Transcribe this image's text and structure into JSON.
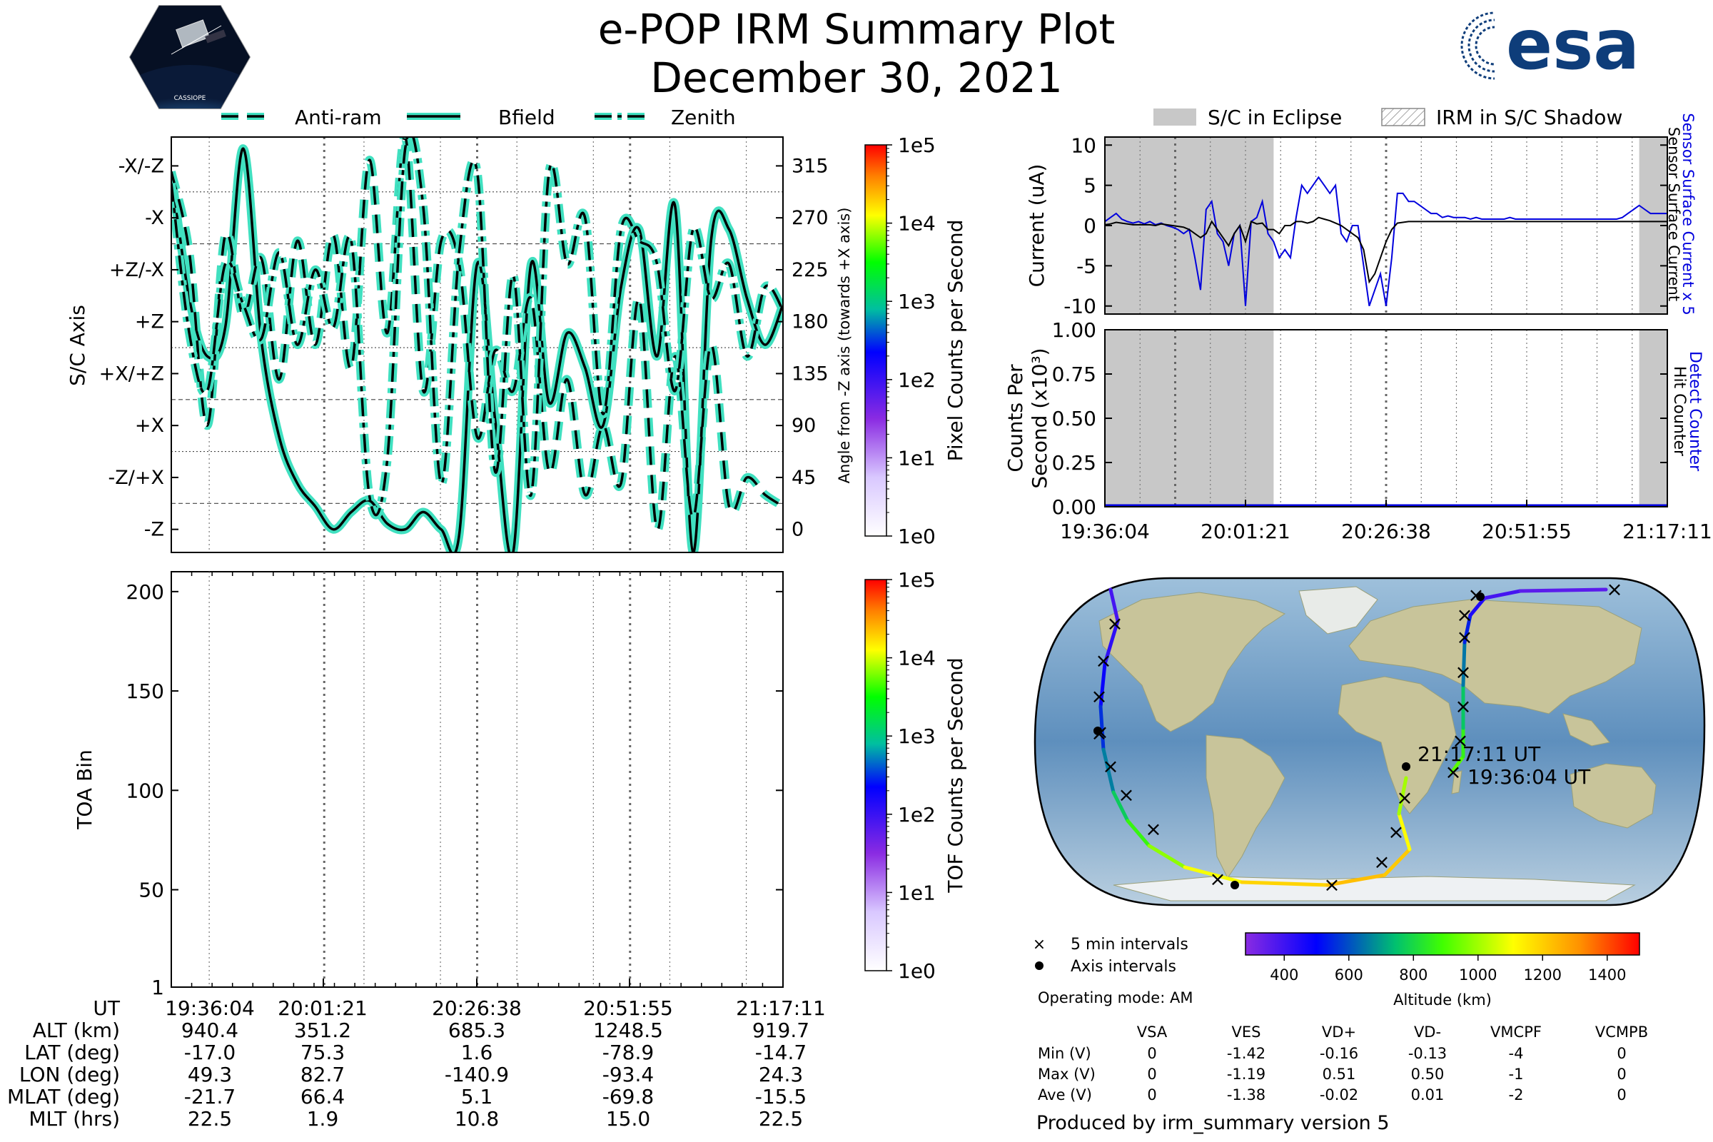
{
  "header": {
    "title": "e-POP IRM Summary Plot",
    "date": "December 30, 2021",
    "mission_badge_text": "CASSIOPE",
    "agency_logo_text": "esa"
  },
  "colors": {
    "line_fill": "#40e0c0",
    "eclipse_gray": "#c8c8c8",
    "blue": "#0000dd",
    "ocean": "#7aa6c8",
    "land": "#c9c59a"
  },
  "chart_data": [
    {
      "id": "sc-axis",
      "type": "line",
      "legend": [
        "Anti-ram",
        "Bfield",
        "Zenith"
      ],
      "ylabel_left": "S/C Axis",
      "ylabel_right": "Angle from -Z axis (towards +X axis)",
      "left_ticks": [
        "-X/-Z",
        "-X",
        "+Z/-X",
        "+Z",
        "+X/+Z",
        "+X",
        "-Z/+X",
        "-Z"
      ],
      "right_ticks": [
        315,
        270,
        225,
        180,
        135,
        90,
        45,
        0
      ],
      "ylim": [
        -20,
        340
      ],
      "x": [
        0,
        3,
        6,
        9,
        12,
        15,
        18,
        21,
        24,
        27,
        30,
        33,
        36,
        39,
        42,
        45,
        48,
        51,
        54,
        57,
        60,
        63,
        66,
        69,
        72,
        75,
        78,
        81,
        84,
        87,
        90,
        93,
        96,
        99,
        102
      ],
      "series": [
        {
          "name": "Bfield",
          "values": [
            310,
            200,
            150,
            175,
            330,
            165,
            80,
            40,
            20,
            0,
            15,
            25,
            5,
            0,
            15,
            0,
            -5,
            230,
            95,
            -20,
            230,
            110,
            170,
            140,
            90,
            210,
            260,
            150,
            280,
            -20,
            250,
            260,
            200,
            160,
            195
          ]
        },
        {
          "name": "Anti-ram",
          "values": [
            310,
            240,
            90,
            255,
            185,
            235,
            130,
            250,
            160,
            255,
            140,
            320,
            170,
            340,
            120,
            250,
            230,
            80,
            155,
            120,
            200,
            50,
            130,
            30,
            90,
            40,
            200,
            0,
            150,
            10,
            160,
            20,
            45,
            30,
            20
          ]
        },
        {
          "name": "Zenith",
          "values": [
            300,
            170,
            120,
            230,
            195,
            165,
            240,
            160,
            225,
            175,
            250,
            30,
            60,
            330,
            280,
            40,
            240,
            310,
            50,
            220,
            30,
            310,
            230,
            270,
            100,
            260,
            250,
            230,
            120,
            260,
            200,
            230,
            150,
            210,
            190
          ]
        }
      ],
      "colorbar": {
        "label": "Pixel Counts per Second",
        "ticks": [
          "1e5",
          "1e4",
          "1e3",
          "1e2",
          "1e1",
          "1e0"
        ]
      }
    },
    {
      "id": "toa",
      "type": "heatmap",
      "ylabel": "TOA Bin",
      "yticks": [
        200,
        150,
        100,
        50,
        1
      ],
      "ylim": [
        1,
        210
      ],
      "colorbar": {
        "label": "TOF Counts per Second",
        "ticks": [
          "1e5",
          "1e4",
          "1e3",
          "1e2",
          "1e1",
          "1e0"
        ]
      }
    },
    {
      "id": "current",
      "type": "line",
      "ylabel": "Current (uA)",
      "yticks": [
        10,
        5,
        0,
        -5,
        -10
      ],
      "ylim": [
        -11,
        11
      ],
      "legend": [
        "S/C in Eclipse",
        "IRM in S/C Shadow"
      ],
      "right_label_1": "Sensor Surface Current x 5",
      "right_label_2": "Sensor Surface Current",
      "x": [
        0,
        1,
        2,
        3,
        4,
        5,
        6,
        7,
        8,
        9,
        10,
        11,
        12,
        13,
        14,
        15,
        16,
        17,
        18,
        19,
        20,
        21,
        22,
        23,
        24,
        25,
        26,
        27,
        28,
        29,
        30,
        31,
        32,
        33,
        34,
        35,
        36,
        37,
        38,
        39,
        40,
        41,
        42,
        43,
        44,
        45,
        46,
        47,
        48,
        49,
        50,
        51,
        52,
        53,
        54,
        55,
        56,
        57,
        58,
        59,
        60,
        61,
        62,
        63,
        64,
        65,
        66,
        67,
        68,
        69,
        70,
        71,
        72,
        73,
        74,
        75,
        76,
        77,
        78,
        79,
        80,
        81,
        82,
        83,
        84,
        85,
        86,
        87,
        88,
        89,
        90,
        91,
        92,
        93,
        94,
        95,
        96,
        97,
        98,
        99,
        100
      ],
      "series": [
        {
          "name": "Sensor Surface Current x 5",
          "values": [
            0.5,
            1,
            1.5,
            0.8,
            0.5,
            0.3,
            0.5,
            0.2,
            0.5,
            0.1,
            0.3,
            0,
            -0.2,
            -0.5,
            -1,
            -0.5,
            -4,
            -8,
            2,
            3,
            -1,
            -2,
            -5,
            -1,
            0,
            -10,
            0.5,
            1,
            3,
            -1,
            -2,
            -4,
            -3,
            -4,
            1,
            5,
            4,
            5,
            6,
            5,
            4,
            5,
            -1,
            -2,
            0,
            0,
            -5,
            -10,
            -8,
            -6,
            -10,
            -4,
            4,
            4,
            3,
            3,
            2.5,
            2,
            1.5,
            1.5,
            1,
            1.2,
            1,
            1,
            1,
            0.8,
            1,
            0.8,
            0.8,
            0.8,
            0.8,
            0.8,
            1,
            0.8,
            0.8,
            0.8,
            0.8,
            0.8,
            0.8,
            0.8,
            0.8,
            0.8,
            0.8,
            0.8,
            0.8,
            0.8,
            0.8,
            0.8,
            0.8,
            0.8,
            0.8,
            0.8,
            1,
            1.5,
            2,
            2.5,
            2,
            1.5,
            1.5,
            1.5,
            1.5
          ]
        },
        {
          "name": "Sensor Surface Current",
          "values": [
            0.1,
            0.2,
            0.4,
            0.3,
            0.2,
            0.1,
            0.1,
            0.1,
            0.1,
            0,
            0.2,
            0.1,
            0,
            -0.1,
            -0.2,
            -0.5,
            -1,
            -1.5,
            -1,
            0.5,
            -0.5,
            -1.5,
            -2.5,
            -1,
            0,
            -2,
            0.5,
            0.2,
            0.3,
            -0.5,
            -0.5,
            -1,
            0,
            0,
            0.5,
            0.5,
            0.3,
            0.5,
            1,
            0.8,
            0.6,
            0.3,
            0,
            -0.5,
            -1,
            -1.5,
            -3,
            -7,
            -6,
            -4,
            -2,
            -0.5,
            0.3,
            0.4,
            0.5,
            0.5,
            0.5,
            0.5,
            0.5,
            0.5,
            0.5,
            0.5,
            0.5,
            0.5,
            0.5,
            0.5,
            0.5,
            0.5,
            0.5,
            0.5,
            0.5,
            0.5,
            0.5,
            0.5,
            0.5,
            0.5,
            0.5,
            0.5,
            0.5,
            0.5,
            0.5,
            0.5,
            0.5,
            0.5,
            0.5,
            0.5,
            0.5,
            0.5,
            0.5,
            0.5,
            0.5,
            0.5,
            0.5,
            0.5,
            0.5,
            0.5,
            0.5,
            0.5,
            0.5,
            0.5,
            0.5
          ]
        }
      ],
      "eclipse_ranges": [
        [
          0,
          30
        ],
        [
          95,
          100
        ]
      ]
    },
    {
      "id": "counts",
      "type": "line",
      "ylabel_1": "Counts Per",
      "ylabel_2": "Second (x10³)",
      "yticks": [
        "1.00",
        "0.75",
        "0.50",
        "0.25",
        "0.00"
      ],
      "ylim": [
        0,
        1
      ],
      "right_label_1": "Detect Counter",
      "right_label_2": "Hit Counter",
      "xticks": [
        "19:36:04",
        "20:01:21",
        "20:26:38",
        "20:51:55",
        "21:17:11"
      ],
      "eclipse_ranges": [
        [
          0,
          30
        ],
        [
          95,
          100
        ]
      ]
    }
  ],
  "table": {
    "rows": [
      {
        "label": "UT",
        "values": [
          "19:36:04",
          "20:01:21",
          "20:26:38",
          "20:51:55",
          "21:17:11"
        ]
      },
      {
        "label": "ALT (km)",
        "values": [
          "940.4",
          "351.2",
          "685.3",
          "1248.5",
          "919.7"
        ]
      },
      {
        "label": "LAT (deg)",
        "values": [
          "-17.0",
          "75.3",
          "1.6",
          "-78.9",
          "-14.7"
        ]
      },
      {
        "label": "LON (deg)",
        "values": [
          "49.3",
          "82.7",
          "-140.9",
          "-93.4",
          "24.3"
        ]
      },
      {
        "label": "MLAT (deg)",
        "values": [
          "-21.7",
          "66.4",
          "5.1",
          "-69.8",
          "-15.5"
        ]
      },
      {
        "label": "MLT (hrs)",
        "values": [
          "22.5",
          "1.9",
          "10.8",
          "15.0",
          "22.5"
        ]
      }
    ]
  },
  "map": {
    "end_label": "21:17:11 UT",
    "start_label": "19:36:04 UT",
    "legend_5min": "5 min intervals",
    "legend_axis": "Axis intervals",
    "operating_mode": "Operating mode: AM",
    "altitude_label": "Altitude (km)",
    "altitude_ticks": [
      "400",
      "600",
      "800",
      "1000",
      "1200",
      "1400"
    ]
  },
  "voltages": {
    "headers": [
      "VSA",
      "VES",
      "VD+",
      "VD-",
      "VMCPF",
      "VCMPB"
    ],
    "rows": [
      {
        "label": "Min (V)",
        "values": [
          "0",
          "-1.42",
          "-0.16",
          "-0.13",
          "-4",
          "0"
        ]
      },
      {
        "label": "Max (V)",
        "values": [
          "0",
          "-1.19",
          "0.51",
          "0.50",
          "-1",
          "0"
        ]
      },
      {
        "label": "Ave (V)",
        "values": [
          "0",
          "-1.38",
          "-0.02",
          "0.01",
          "-2",
          "0"
        ]
      }
    ]
  },
  "footer": "Produced by irm_summary version 5"
}
